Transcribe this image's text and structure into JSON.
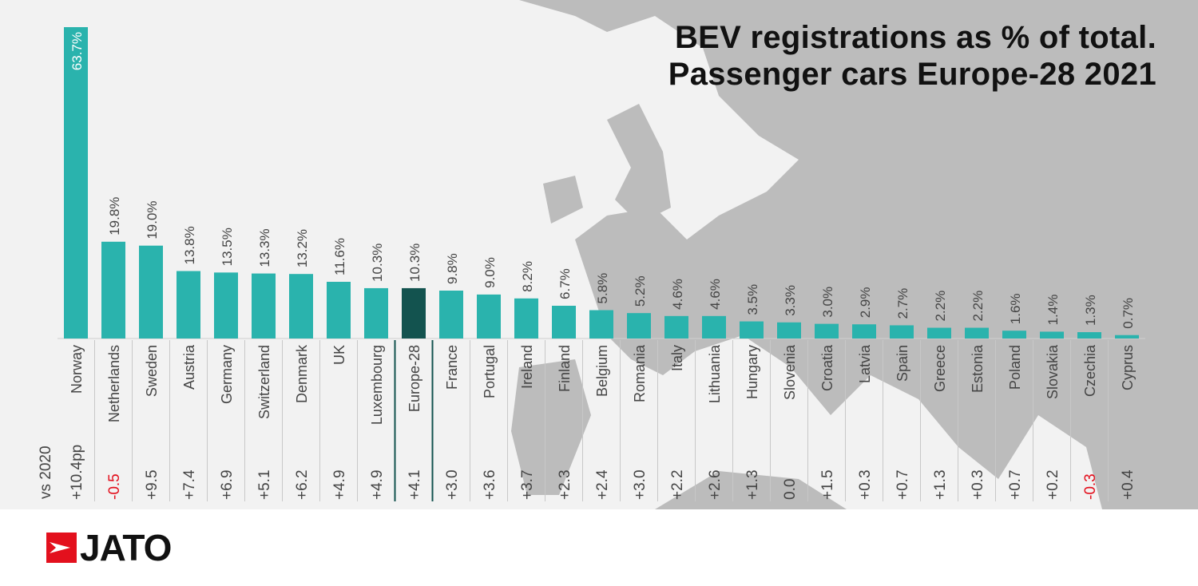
{
  "chart_data": {
    "type": "bar",
    "title": "BEV registrations as % of total.",
    "subtitle": "Passenger cars Europe-28 2021",
    "categories": [
      "Norway",
      "Netherlands",
      "Sweden",
      "Austria",
      "Germany",
      "Switzerland",
      "Denmark",
      "UK",
      "Luxembourg",
      "Europe-28",
      "France",
      "Portugal",
      "Ireland",
      "Finland",
      "Belgium",
      "Romania",
      "Italy",
      "Lithuania",
      "Hungary",
      "Slovenia",
      "Croatia",
      "Latvia",
      "Spain",
      "Greece",
      "Estonia",
      "Poland",
      "Slovakia",
      "Czechia",
      "Cyprus"
    ],
    "values": [
      63.7,
      19.8,
      19.0,
      13.8,
      13.5,
      13.3,
      13.2,
      11.6,
      10.3,
      10.3,
      9.8,
      9.0,
      8.2,
      6.7,
      5.8,
      5.2,
      4.6,
      4.6,
      3.5,
      3.3,
      3.0,
      2.9,
      2.7,
      2.2,
      2.2,
      1.6,
      1.4,
      1.3,
      0.7
    ],
    "value_labels": [
      "63.7%",
      "19.8%",
      "19.0%",
      "13.8%",
      "13.5%",
      "13.3%",
      "13.2%",
      "11.6%",
      "10.3%",
      "10.3%",
      "9.8%",
      "9.0%",
      "8.2%",
      "6.7%",
      "5.8%",
      "5.2%",
      "4.6%",
      "4.6%",
      "3.5%",
      "3.3%",
      "3.0%",
      "2.9%",
      "2.7%",
      "2.2%",
      "2.2%",
      "1.6%",
      "1.4%",
      "1.3%",
      "0.7%"
    ],
    "change_label": "vs 2020",
    "change_vs_2020": [
      "+10.4pp",
      "-0.5",
      "+9.5",
      "+7.4",
      "+6.9",
      "+5.1",
      "+6.2",
      "+4.9",
      "+4.9",
      "+4.1",
      "+3.0",
      "+3.6",
      "+3.7",
      "+2.3",
      "+2.4",
      "+3.0",
      "+2.2",
      "+2.6",
      "+1.3",
      "0.0",
      "+1.5",
      "+0.3",
      "+0.7",
      "+1.3",
      "+0.3",
      "+0.7",
      "+0.2",
      "-0.3",
      "+0.4"
    ],
    "highlight_category": "Europe-28",
    "ylim": [
      0,
      63.7
    ],
    "grid": false,
    "colors": {
      "bar": "#2ab3ad",
      "highlight": "#13534f",
      "negative": "#e3101d",
      "text": "#444444",
      "background": "#f2f2f2",
      "map": "#b8b8b8"
    }
  },
  "brand": {
    "name": "JATO"
  }
}
